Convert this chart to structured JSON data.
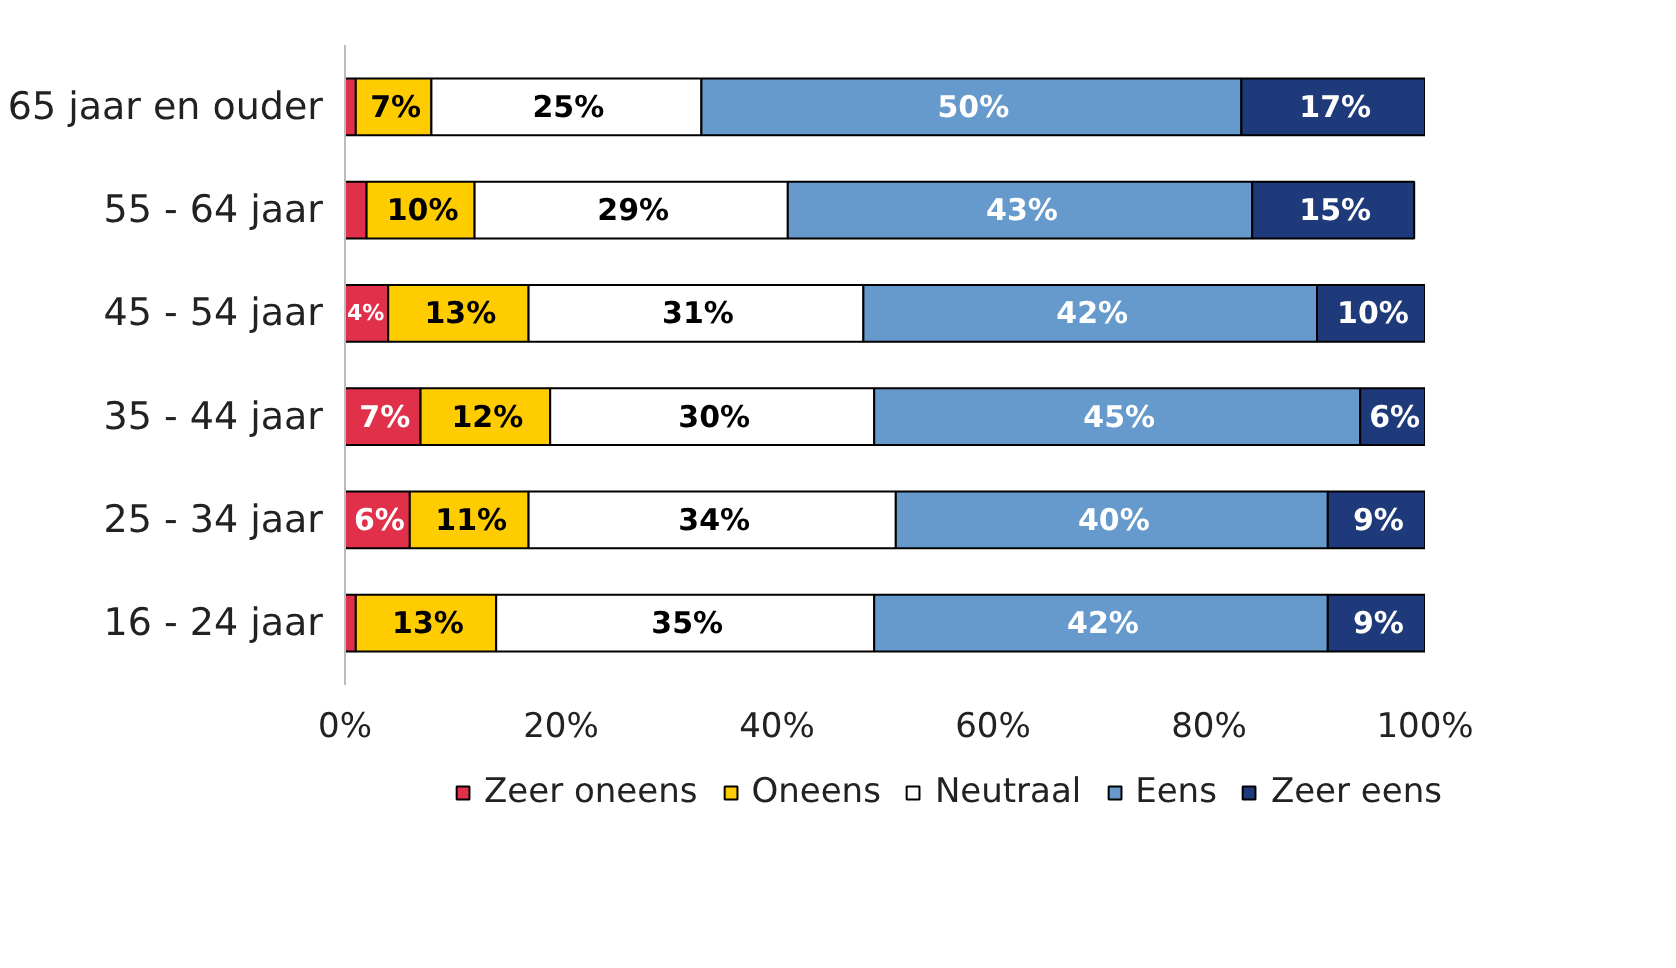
{
  "chart_data": {
    "type": "bar",
    "orientation": "horizontal",
    "stacked": true,
    "categories": [
      "65 jaar en ouder",
      "55 - 64 jaar",
      "45 - 54 jaar",
      "35 - 44 jaar",
      "25 - 34 jaar",
      "16 - 24 jaar"
    ],
    "series": [
      {
        "name": "Zeer oneens",
        "color": "#e0304a",
        "values": [
          1,
          2,
          4,
          7,
          6,
          1
        ],
        "value_labels": [
          null,
          null,
          "4%",
          "7%",
          "6%",
          null
        ]
      },
      {
        "name": "Oneens",
        "color": "#ffcc00",
        "values": [
          7,
          10,
          13,
          12,
          11,
          13
        ],
        "value_labels": [
          "7%",
          "10%",
          "13%",
          "12%",
          "11%",
          "13%"
        ]
      },
      {
        "name": "Neutraal",
        "color": "#ffffff",
        "values": [
          25,
          29,
          31,
          30,
          34,
          35
        ],
        "value_labels": [
          "25%",
          "29%",
          "31%",
          "30%",
          "34%",
          "35%"
        ]
      },
      {
        "name": "Eens",
        "color": "#6699cc",
        "values": [
          50,
          43,
          42,
          45,
          40,
          42
        ],
        "value_labels": [
          "50%",
          "43%",
          "42%",
          "45%",
          "40%",
          "42%"
        ]
      },
      {
        "name": "Zeer eens",
        "color": "#1f3a7a",
        "values": [
          17,
          15,
          10,
          6,
          9,
          9
        ],
        "value_labels": [
          "17%",
          "15%",
          "10%",
          "6%",
          "9%",
          "9%"
        ]
      }
    ],
    "xlim": [
      0,
      100
    ],
    "xticks": [
      {
        "value": 0,
        "label": "0%"
      },
      {
        "value": 20,
        "label": "20%"
      },
      {
        "value": 40,
        "label": "40%"
      },
      {
        "value": 60,
        "label": "60%"
      },
      {
        "value": 80,
        "label": "80%"
      },
      {
        "value": 100,
        "label": "100%"
      }
    ],
    "grid": false,
    "legend": "bottom"
  }
}
